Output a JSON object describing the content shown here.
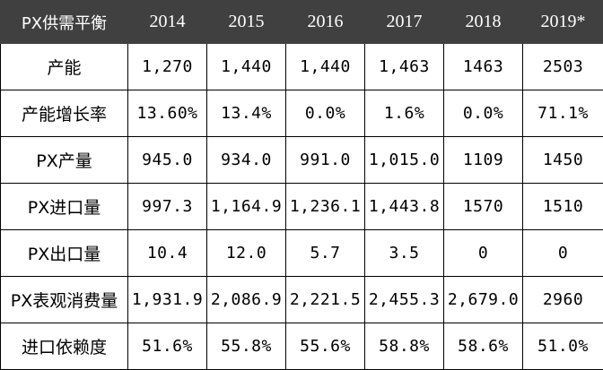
{
  "table": {
    "header": [
      "PX供需平衡",
      "2014",
      "2015",
      "2016",
      "2017",
      "2018",
      "2019*"
    ],
    "rows": [
      {
        "label": "产能",
        "values": [
          "1,270",
          "1,440",
          "1,440",
          "1,463",
          "1463",
          "2503"
        ]
      },
      {
        "label": "产能增长率",
        "values": [
          "13.60%",
          "13.4%",
          "0.0%",
          "1.6%",
          "0.0%",
          "71.1%"
        ]
      },
      {
        "label": "PX产量",
        "values": [
          "945.0",
          "934.0",
          "991.0",
          "1,015.0",
          "1109",
          "1450"
        ]
      },
      {
        "label": "PX进口量",
        "values": [
          "997.3",
          "1,164.9",
          "1,236.1",
          "1,443.8",
          "1570",
          "1510"
        ]
      },
      {
        "label": "PX出口量",
        "values": [
          "10.4",
          "12.0",
          "5.7",
          "3.5",
          "0",
          "0"
        ]
      },
      {
        "label": "PX表观消费量",
        "values": [
          "1,931.9",
          "2,086.9",
          "2,221.5",
          "2,455.3",
          "2,679.0",
          "2960"
        ]
      },
      {
        "label": "进口依赖度",
        "values": [
          "51.6%",
          "55.8%",
          "55.6%",
          "58.8%",
          "58.6%",
          "51.0%"
        ]
      }
    ]
  },
  "colors": {
    "header_bg": "#404040",
    "header_text": "#ffffff",
    "border": "#000000"
  }
}
